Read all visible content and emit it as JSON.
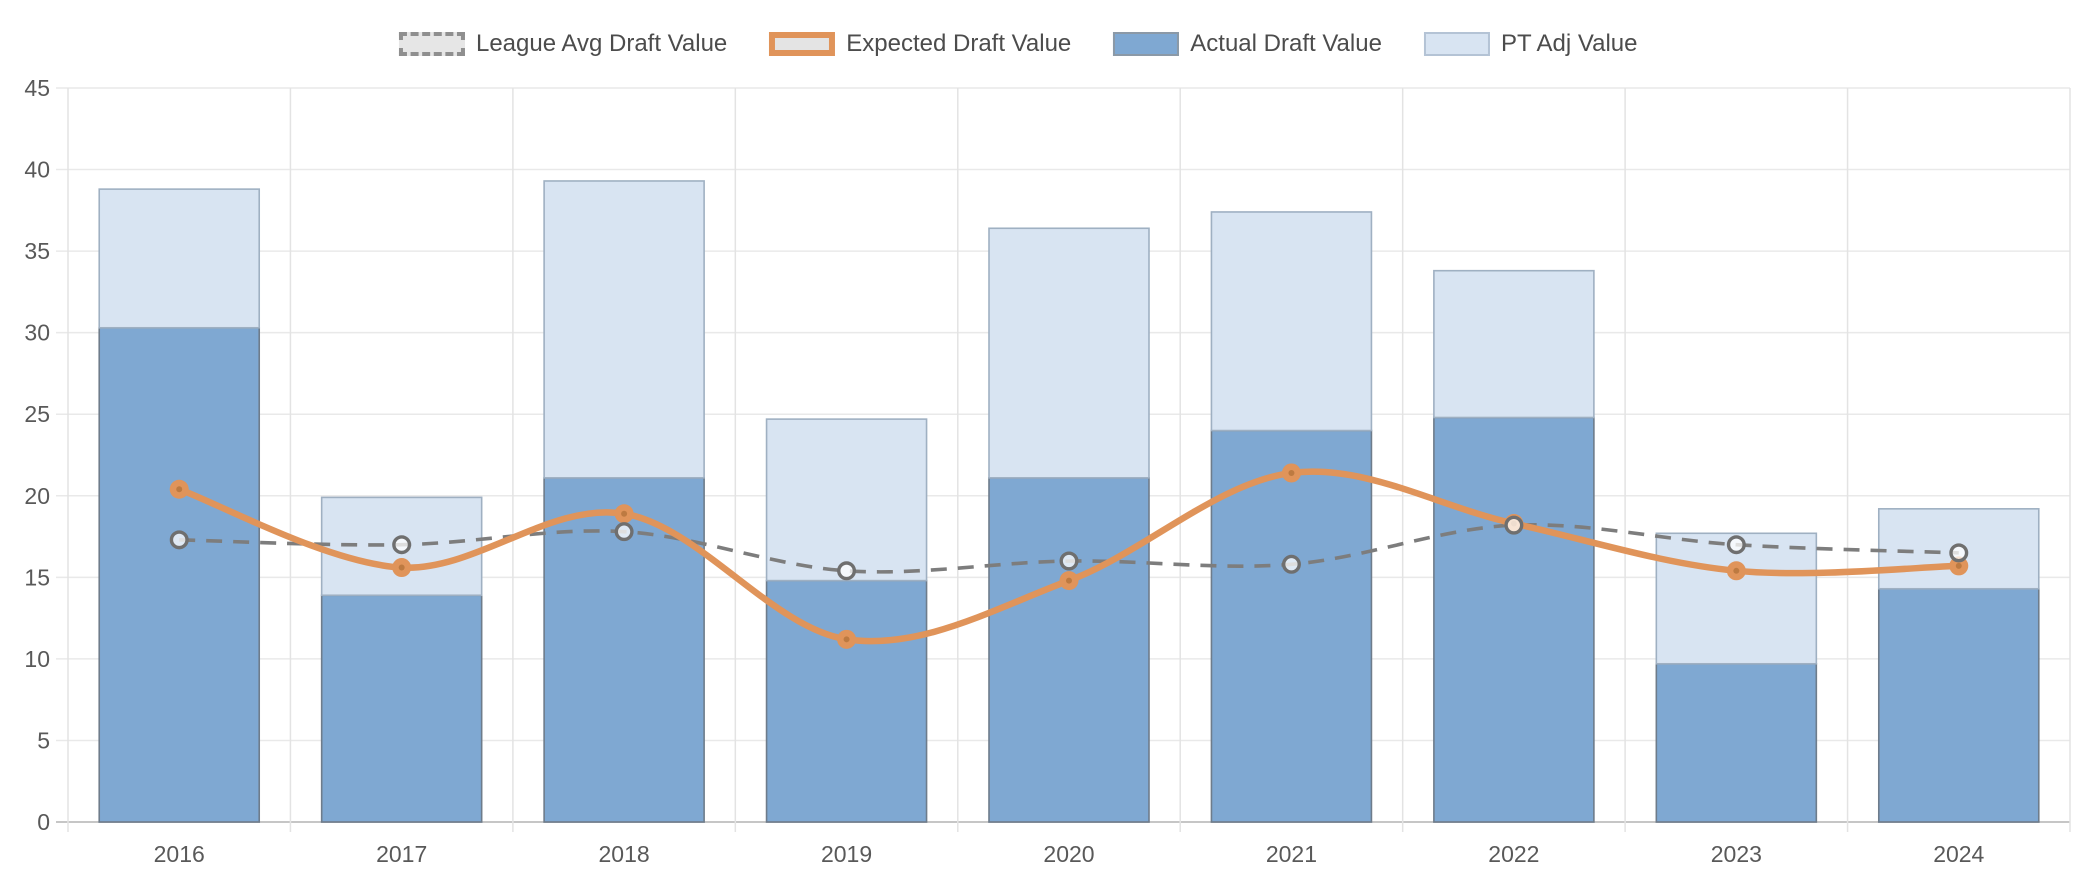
{
  "chart_data": {
    "type": "combo-stacked-bar-line",
    "title": "",
    "xlabel": "",
    "ylabel": "",
    "categories": [
      "2016",
      "2017",
      "2018",
      "2019",
      "2020",
      "2021",
      "2022",
      "2023",
      "2024"
    ],
    "ylim": [
      0,
      45
    ],
    "yticks": [
      0,
      5,
      10,
      15,
      20,
      25,
      30,
      35,
      40,
      45
    ],
    "grid": true,
    "legend_position": "top-center",
    "series": [
      {
        "name": "League Avg Draft Value",
        "type": "line",
        "style": "dashed",
        "color": "#7d7d7d",
        "marker": "hollow-circle",
        "values": [
          17.3,
          17.0,
          17.8,
          15.4,
          16.0,
          15.8,
          18.2,
          17.0,
          16.5
        ]
      },
      {
        "name": "Expected Draft Value",
        "type": "line",
        "style": "solid",
        "color": "#e0945a",
        "marker": "filled-circle",
        "marker_center_color": "#bd7a41",
        "values": [
          20.4,
          15.6,
          18.9,
          11.2,
          14.8,
          21.4,
          18.3,
          15.4,
          15.7
        ]
      },
      {
        "name": "Actual Draft Value",
        "type": "bar",
        "stack": "draft-value",
        "color": "#7fa8d2",
        "border_color": "#6e7c8b",
        "values": [
          30.3,
          13.9,
          21.1,
          14.8,
          21.1,
          24.0,
          24.8,
          9.7,
          14.3
        ]
      },
      {
        "name": "PT Adj Value",
        "type": "bar",
        "stack": "draft-value",
        "color": "#d8e4f2",
        "border_color": "#9fb0c2",
        "values": [
          8.5,
          6.0,
          18.2,
          9.9,
          15.3,
          13.4,
          9.0,
          8.0,
          4.9
        ]
      }
    ],
    "stack_totals": [
      38.8,
      19.9,
      39.3,
      24.7,
      36.4,
      37.4,
      33.8,
      17.7,
      19.2
    ]
  }
}
